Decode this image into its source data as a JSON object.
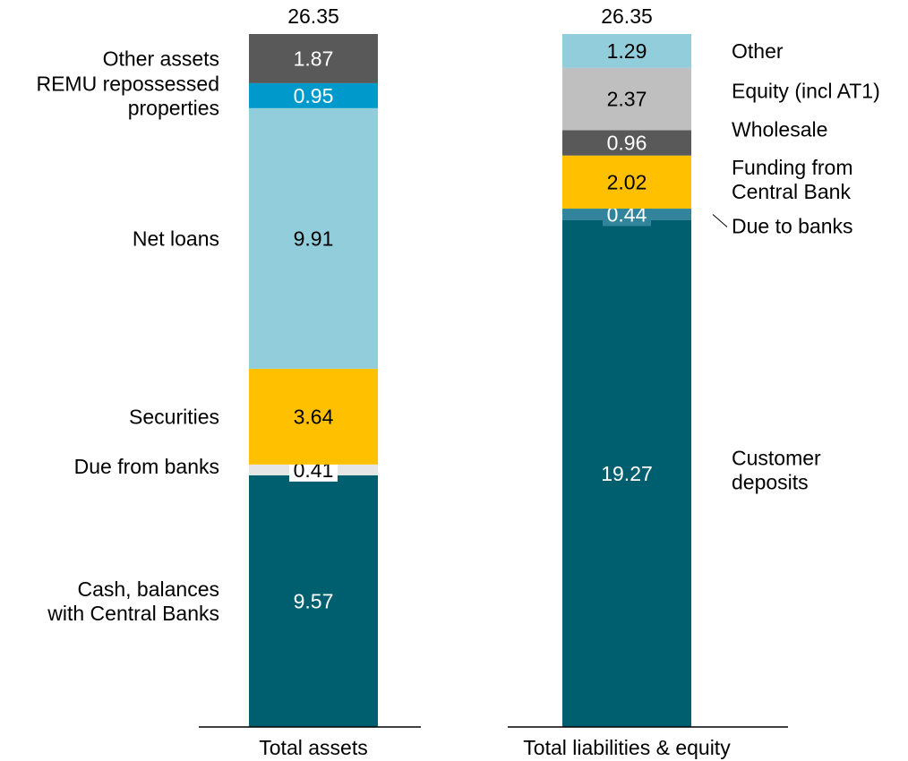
{
  "chart_data": {
    "type": "bar",
    "stacked": true,
    "categories": [
      "Total assets",
      "Total liabilities & equity"
    ],
    "totals": [
      26.35,
      26.35
    ],
    "ylim": [
      0,
      26.35
    ],
    "grid": false,
    "bars": [
      {
        "category": "Total assets",
        "segments": [
          {
            "name": "Cash, balances\nwith Central Banks",
            "value": 9.57,
            "color": "#005f6e",
            "label_color": "#ffffff"
          },
          {
            "name": "Due from banks",
            "value": 0.41,
            "color": "#e6e6e6",
            "label_color": "#000000",
            "label_box": true
          },
          {
            "name": "Securities",
            "value": 3.64,
            "color": "#ffc000",
            "label_color": "#000000"
          },
          {
            "name": "Net loans",
            "value": 9.91,
            "color": "#92cddc",
            "label_color": "#000000"
          },
          {
            "name": "REMU repossessed\nproperties",
            "value": 0.95,
            "color": "#0099cc",
            "label_color": "#ffffff"
          },
          {
            "name": "Other assets",
            "value": 1.87,
            "color": "#595959",
            "label_color": "#ffffff"
          }
        ]
      },
      {
        "category": "Total liabilities & equity",
        "segments": [
          {
            "name": "Customer\ndeposits",
            "value": 19.27,
            "color": "#005f6e",
            "label_color": "#ffffff"
          },
          {
            "name": "Due to banks",
            "value": 0.44,
            "color": "#31849b",
            "label_color": "#ffffff",
            "label_box": true,
            "leader": true
          },
          {
            "name": "Funding from\nCentral Bank",
            "value": 2.02,
            "color": "#ffc000",
            "label_color": "#000000"
          },
          {
            "name": "Wholesale",
            "value": 0.96,
            "color": "#595959",
            "label_color": "#ffffff"
          },
          {
            "name": "Equity (incl AT1)",
            "value": 2.37,
            "color": "#bfbfbf",
            "label_color": "#000000"
          },
          {
            "name": "Other",
            "value": 1.29,
            "color": "#92cddc",
            "label_color": "#000000"
          }
        ]
      }
    ]
  }
}
